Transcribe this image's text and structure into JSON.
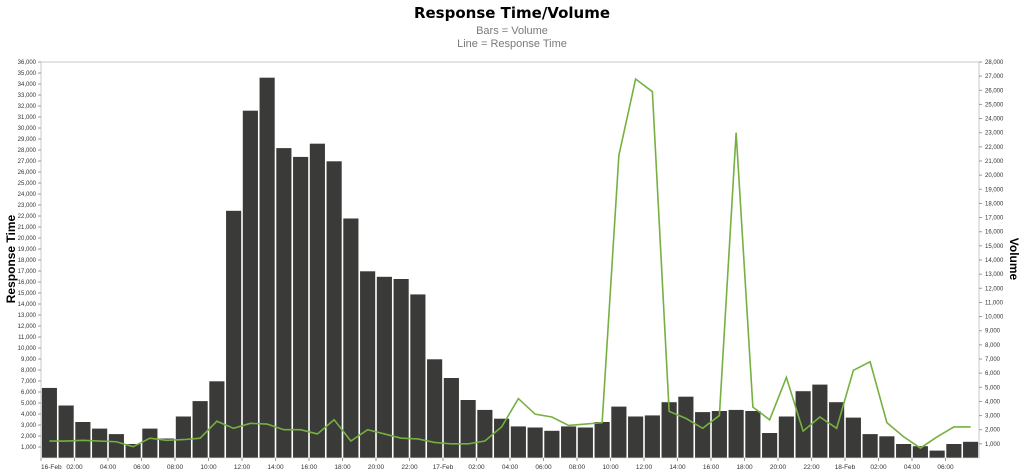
{
  "chart_data": {
    "type": "bar+line",
    "title": "Response Time/Volume",
    "subtitle_lines": [
      "Bars = Volume",
      "Line = Response Time"
    ],
    "ylabel_left": "Response Time",
    "ylabel_right": "Volume",
    "xlabel": "",
    "left_axis": {
      "min": 0,
      "max": 36000,
      "step": 1000,
      "ticks": [
        "1,000",
        "2,000",
        "3,000",
        "4,000",
        "5,000",
        "6,000",
        "7,000",
        "8,000",
        "9,000",
        "10,000",
        "11,000",
        "12,000",
        "13,000",
        "14,000",
        "15,000",
        "16,000",
        "17,000",
        "18,000",
        "19,000",
        "20,000",
        "21,000",
        "22,000",
        "23,000",
        "24,000",
        "25,000",
        "26,000",
        "27,000",
        "28,000",
        "29,000",
        "30,000",
        "31,000",
        "32,000",
        "33,000",
        "34,000",
        "35,000",
        "36,000"
      ]
    },
    "right_axis": {
      "min": 0,
      "max": 28000,
      "step": 1000,
      "ticks": [
        "1,000",
        "2,000",
        "3,000",
        "4,000",
        "5,000",
        "6,000",
        "7,000",
        "8,000",
        "9,000",
        "10,000",
        "11,000",
        "12,000",
        "13,000",
        "14,000",
        "15,000",
        "16,000",
        "17,000",
        "18,000",
        "19,000",
        "20,000",
        "21,000",
        "22,000",
        "23,000",
        "24,000",
        "25,000",
        "26,000",
        "27,000",
        "28,000"
      ]
    },
    "x_ticks": [
      "16-Feb",
      "02:00",
      "04:00",
      "06:00",
      "08:00",
      "10:00",
      "12:00",
      "14:00",
      "16:00",
      "18:00",
      "20:00",
      "22:00",
      "17-Feb",
      "02:00",
      "04:00",
      "06:00",
      "08:00",
      "10:00",
      "12:00",
      "14:00",
      "16:00",
      "18:00",
      "20:00",
      "22:00",
      "18-Feb",
      "02:00",
      "04:00",
      "06:00"
    ],
    "bar_color": "#3a3a38",
    "line_color": "#76b041",
    "bars": {
      "name": "Volume",
      "axis": "left",
      "values": [
        6400,
        4800,
        3300,
        2700,
        2200,
        1300,
        2700,
        1800,
        3800,
        5200,
        7000,
        22500,
        31600,
        34600,
        28200,
        27400,
        28600,
        27000,
        21800,
        17000,
        16500,
        16300,
        14900,
        9000,
        7300,
        5300,
        4400,
        3600,
        2900,
        2800,
        2500,
        2900,
        2800,
        3300,
        4700,
        3800,
        3900,
        5100,
        5600,
        4200,
        4300,
        4400,
        4300,
        2300,
        3800,
        6100,
        6700,
        5100,
        3700,
        2200,
        2000,
        1300,
        1100,
        700,
        1300,
        1500
      ]
    },
    "line": {
      "name": "Response Time",
      "axis": "right",
      "values": [
        1200,
        1200,
        1250,
        1200,
        1150,
        800,
        1400,
        1250,
        1300,
        1400,
        2600,
        2100,
        2450,
        2400,
        2000,
        2000,
        1700,
        2700,
        1200,
        2000,
        1700,
        1400,
        1350,
        1100,
        1000,
        1000,
        1200,
        2200,
        4200,
        3100,
        2900,
        2300,
        2400,
        2500,
        21400,
        26800,
        25900,
        3300,
        2800,
        2100,
        3000,
        23000,
        3600,
        2700,
        5700,
        1900,
        2900,
        2100,
        6200,
        6800,
        2500,
        1500,
        700,
        1500,
        2200,
        2200
      ]
    },
    "grid": false,
    "legend": "none"
  }
}
